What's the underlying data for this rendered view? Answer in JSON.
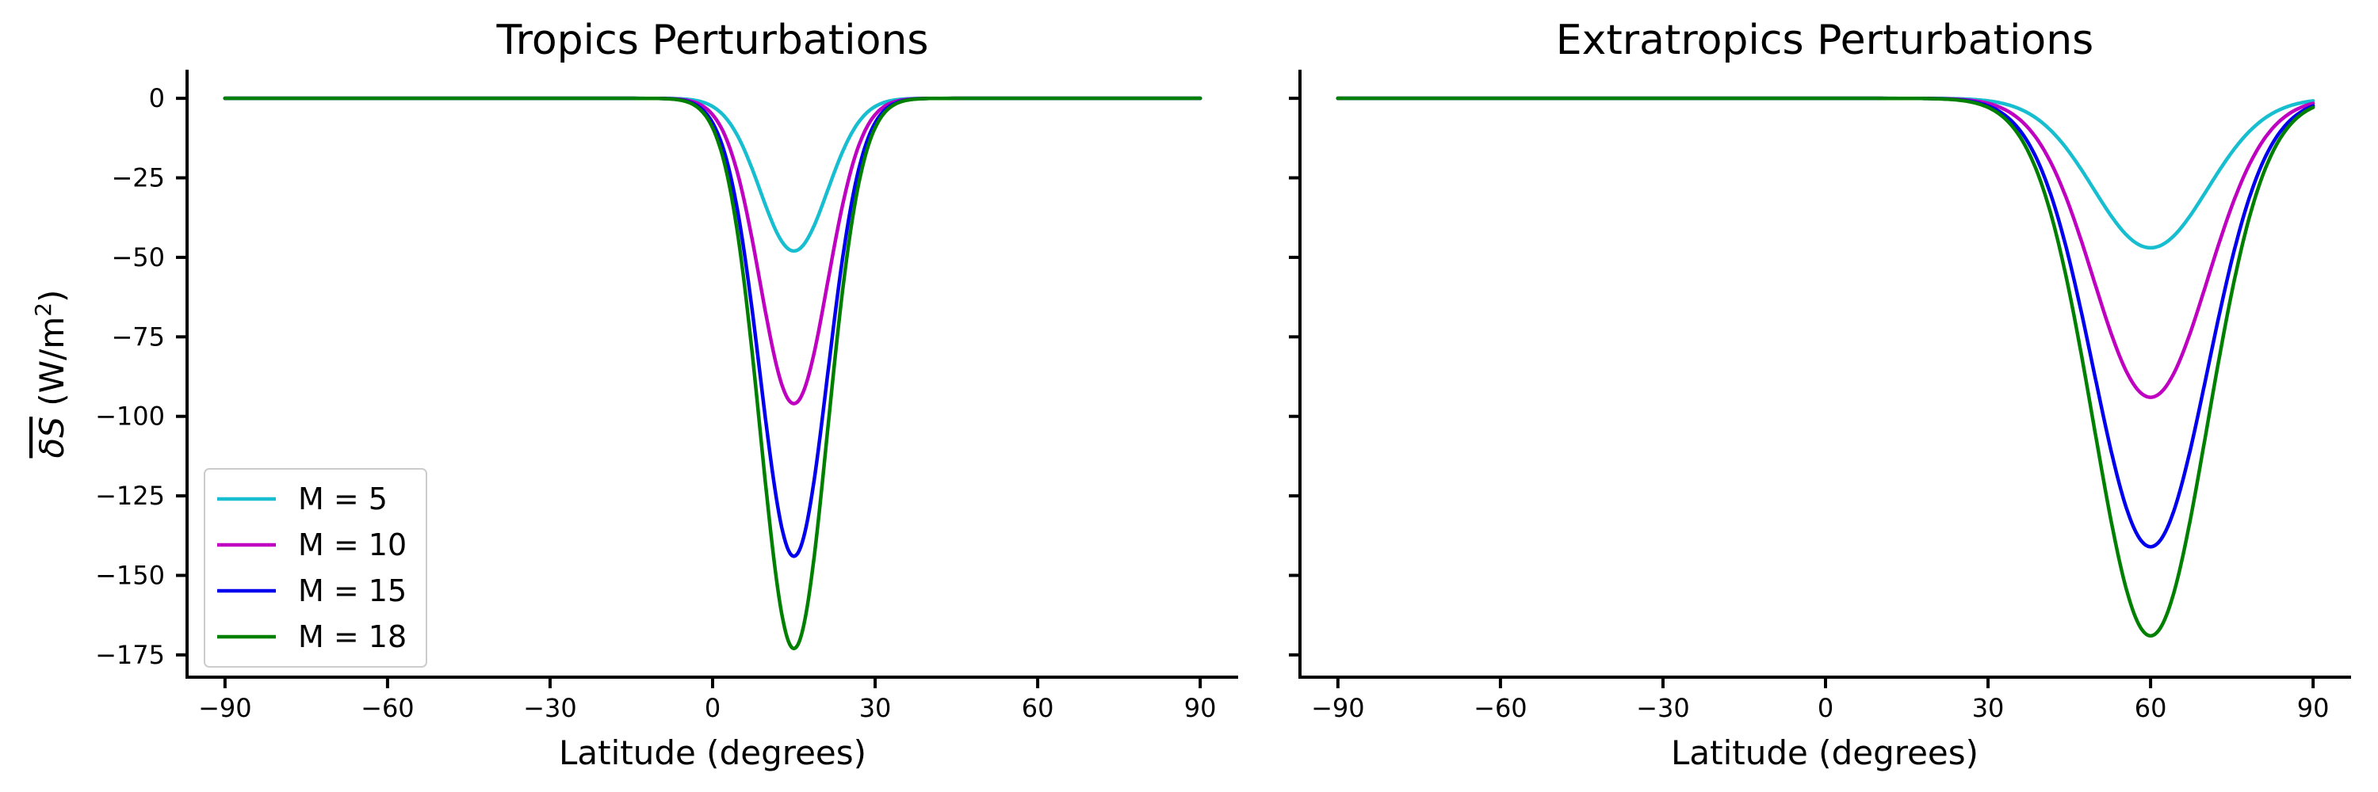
{
  "chart_data": [
    {
      "type": "line",
      "title": "Tropics Perturbations",
      "xlabel": "Latitude (degrees)",
      "ylabel": "δS (W/m²)",
      "xlim": [
        -97,
        97
      ],
      "ylim": [
        -182,
        9
      ],
      "xticks": [
        -90,
        -60,
        -30,
        0,
        30,
        60,
        90
      ],
      "yticks": [
        0,
        -25,
        -50,
        -75,
        -100,
        -125,
        -150,
        -175
      ],
      "grid": false,
      "legend": "lower-left",
      "curve": {
        "shape": "gaussian",
        "center": 15,
        "width": 6.2,
        "x_range": [
          -90,
          90
        ]
      },
      "series": [
        {
          "name": "M = 5",
          "color": "#17becf",
          "minimum": -48
        },
        {
          "name": "M = 10",
          "color": "#c000c0",
          "minimum": -96
        },
        {
          "name": "M = 15",
          "color": "#0000ee",
          "minimum": -144
        },
        {
          "name": "M = 18",
          "color": "#008000",
          "minimum": -173
        }
      ]
    },
    {
      "type": "line",
      "title": "Extratropics Perturbations",
      "xlabel": "Latitude (degrees)",
      "ylabel": "",
      "xlim": [
        -97,
        97
      ],
      "ylim": [
        -182,
        9
      ],
      "xticks": [
        -90,
        -60,
        -30,
        0,
        30,
        60,
        90
      ],
      "yticks": [
        0,
        -25,
        -50,
        -75,
        -100,
        -125,
        -150,
        -175
      ],
      "grid": false,
      "legend": "none",
      "curve": {
        "shape": "gaussian",
        "center": 60,
        "width": 10.5,
        "x_range": [
          -90,
          90
        ]
      },
      "series": [
        {
          "name": "M = 5",
          "color": "#17becf",
          "minimum": -47
        },
        {
          "name": "M = 10",
          "color": "#c000c0",
          "minimum": -94
        },
        {
          "name": "M = 15",
          "color": "#0000ee",
          "minimum": -141
        },
        {
          "name": "M = 18",
          "color": "#008000",
          "minimum": -169
        }
      ]
    }
  ]
}
